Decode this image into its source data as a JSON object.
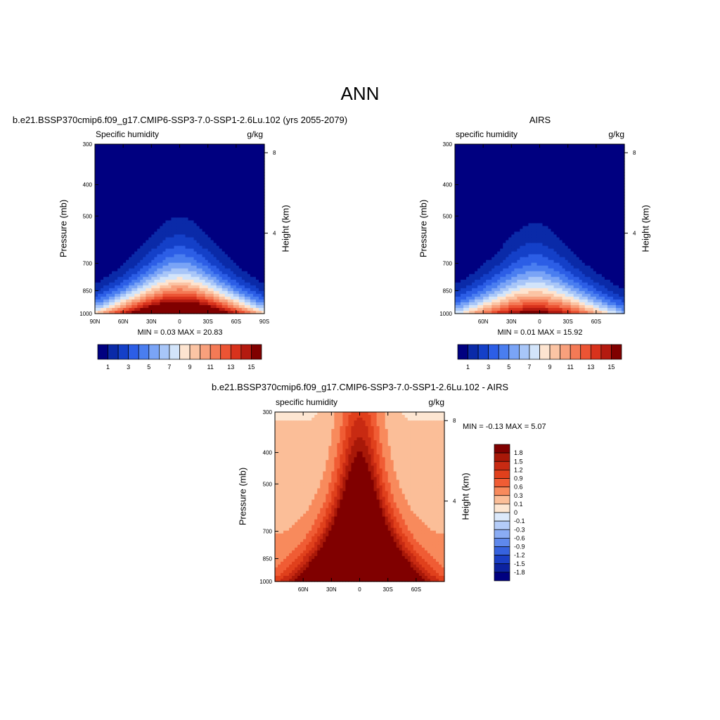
{
  "figure_title": "ANN",
  "chart_data": [
    {
      "type": "heatmap",
      "title": "b.e21.BSSP370cmip6.f09_g17.CMIP6-SSP3-7.0-SSP1-2.6Lu.102 (yrs 2055-2079)",
      "left_string": "Specific humidity",
      "right_string": "g/kg",
      "ylabel": "Pressure (mb)",
      "ylabel_right": "Height (km)",
      "xticks": [
        "90N",
        "60N",
        "30N",
        "0",
        "30S",
        "60S",
        "90S"
      ],
      "xtick_values": [
        90,
        60,
        30,
        0,
        -30,
        -60,
        -90
      ],
      "xlim": [
        90,
        -90
      ],
      "yticks": [
        "300",
        "400",
        "500",
        "700",
        "850",
        "1000"
      ],
      "ytick_values": [
        300,
        400,
        500,
        700,
        850,
        1000
      ],
      "ylim": [
        300,
        1000
      ],
      "y_scale": "log",
      "height_ticks": [
        "8",
        "4"
      ],
      "height_tick_values": [
        8,
        4
      ],
      "min_max_text": "MIN =   0.03  MAX =  20.83",
      "min": 0.03,
      "max": 20.83,
      "peak_lat": 0,
      "colorbar_labels": [
        "1",
        "3",
        "5",
        "7",
        "9",
        "11",
        "13",
        "15"
      ],
      "colorbar_colors": [
        "#000080",
        "#0a2aa8",
        "#1440c8",
        "#2c5ee6",
        "#4a7ef0",
        "#7aa4f6",
        "#a8c6f8",
        "#d2e4fa",
        "#fde4d0",
        "#fbc4a4",
        "#f8a07c",
        "#f47a56",
        "#ec5434",
        "#d8321c",
        "#b41a10",
        "#800000"
      ]
    },
    {
      "type": "heatmap",
      "title": "AIRS",
      "left_string": "specific humidity",
      "right_string": "g/kg",
      "ylabel": "Pressure (mb)",
      "ylabel_right": "Height (km)",
      "xticks": [
        "60N",
        "30N",
        "0",
        "30S",
        "60S"
      ],
      "xtick_values": [
        60,
        30,
        0,
        -30,
        -60
      ],
      "xlim": [
        90,
        -90
      ],
      "yticks": [
        "300",
        "400",
        "500",
        "700",
        "850",
        "1000"
      ],
      "ytick_values": [
        300,
        400,
        500,
        700,
        850,
        1000
      ],
      "ylim": [
        300,
        1000
      ],
      "y_scale": "log",
      "height_ticks": [
        "8",
        "4"
      ],
      "height_tick_values": [
        8,
        4
      ],
      "min_max_text": "MIN =   0.01  MAX =  15.92",
      "min": 0.01,
      "max": 15.92,
      "peak_lat": 5,
      "colorbar_labels": [
        "1",
        "3",
        "5",
        "7",
        "9",
        "11",
        "13",
        "15"
      ],
      "colorbar_colors": [
        "#000080",
        "#0a2aa8",
        "#1440c8",
        "#2c5ee6",
        "#4a7ef0",
        "#7aa4f6",
        "#a8c6f8",
        "#d2e4fa",
        "#fde4d0",
        "#fbc4a4",
        "#f8a07c",
        "#f47a56",
        "#ec5434",
        "#d8321c",
        "#b41a10",
        "#800000"
      ]
    },
    {
      "type": "heatmap",
      "title": "b.e21.BSSP370cmip6.f09_g17.CMIP6-SSP3-7.0-SSP1-2.6Lu.102 - AIRS",
      "left_string": "specific humidity",
      "right_string": "g/kg",
      "ylabel": "Pressure (mb)",
      "ylabel_right": "Height (km)",
      "xticks": [
        "60N",
        "30N",
        "0",
        "30S",
        "60S"
      ],
      "xtick_values": [
        60,
        30,
        0,
        -30,
        -60
      ],
      "xlim": [
        90,
        -90
      ],
      "yticks": [
        "300",
        "400",
        "500",
        "700",
        "850",
        "1000"
      ],
      "ytick_values": [
        300,
        400,
        500,
        700,
        850,
        1000
      ],
      "ylim": [
        300,
        1000
      ],
      "y_scale": "log",
      "height_ticks": [
        "8",
        "4"
      ],
      "height_tick_values": [
        8,
        4
      ],
      "min_max_text": "MIN =  -0.13  MAX =   5.07",
      "min": -0.13,
      "max": 5.07,
      "colorbar_labels": [
        "1.8",
        "1.5",
        "1.2",
        "0.9",
        "0.6",
        "0.3",
        "0.1",
        "0",
        "-0.1",
        "-0.3",
        "-0.6",
        "-0.9",
        "-1.2",
        "-1.5",
        "-1.8"
      ],
      "colorbar_colors": [
        "#800000",
        "#a81808",
        "#c82a12",
        "#e0401c",
        "#f05c34",
        "#f88a5c",
        "#fbbe98",
        "#fde6d2",
        "#dce9fb",
        "#b4ccf8",
        "#8aacf4",
        "#5e88ec",
        "#3662de",
        "#1a3ec4",
        "#0c22a0",
        "#000080"
      ]
    }
  ]
}
